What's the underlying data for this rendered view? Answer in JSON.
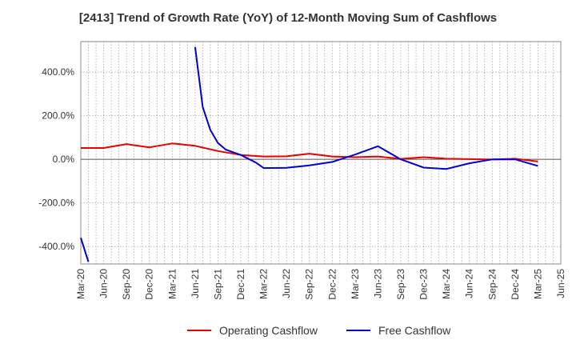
{
  "chart_data": {
    "type": "line",
    "title": "[2413]  Trend of Growth Rate (YoY) of 12-Month Moving Sum of Cashflows",
    "xlabel": "",
    "ylabel": "",
    "x_ticks": [
      "Mar-20",
      "Jun-20",
      "Sep-20",
      "Dec-20",
      "Mar-21",
      "Jun-21",
      "Sep-21",
      "Dec-21",
      "Mar-22",
      "Jun-22",
      "Sep-22",
      "Dec-22",
      "Mar-23",
      "Jun-23",
      "Sep-23",
      "Dec-23",
      "Mar-24",
      "Jun-24",
      "Sep-24",
      "Dec-24",
      "Mar-25",
      "Jun-25"
    ],
    "y_ticks": [
      "400.0%",
      "200.0%",
      "0.0%",
      "-200.0%",
      "-400.0%"
    ],
    "y_tick_values": [
      400,
      200,
      0,
      -200,
      -400
    ],
    "ylim": [
      -480,
      540
    ],
    "grid": true,
    "legend_position": "bottom",
    "series": [
      {
        "name": "Operating Cashflow",
        "color": "#e60000",
        "points": [
          [
            "Mar-20",
            52
          ],
          [
            "Jun-20",
            52
          ],
          [
            "Sep-20",
            70
          ],
          [
            "Dec-20",
            55
          ],
          [
            "Mar-21",
            73
          ],
          [
            "Jun-21",
            62
          ],
          [
            "Sep-21",
            38
          ],
          [
            "Dec-21",
            20
          ],
          [
            "Mar-22",
            13
          ],
          [
            "Jun-22",
            14
          ],
          [
            "Sep-22",
            26
          ],
          [
            "Dec-22",
            13
          ],
          [
            "Mar-23",
            10
          ],
          [
            "Jun-23",
            13
          ],
          [
            "Sep-23",
            2
          ],
          [
            "Dec-23",
            10
          ],
          [
            "Mar-24",
            3
          ],
          [
            "Jun-24",
            1
          ],
          [
            "Sep-24",
            -1
          ],
          [
            "Dec-24",
            3
          ],
          [
            "Mar-25",
            -10
          ]
        ]
      },
      {
        "name": "Free Cashflow",
        "color": "#0000cc",
        "segments": [
          [
            [
              "Mar-20",
              -360
            ],
            [
              "Apr-20",
              -470
            ]
          ],
          [
            [
              "Jun-21",
              515
            ],
            [
              "Jul-21",
              240
            ],
            [
              "Aug-21",
              135
            ],
            [
              "Sep-21",
              75
            ],
            [
              "Oct-21",
              45
            ],
            [
              "Dec-21",
              20
            ],
            [
              "Feb-22",
              -15
            ],
            [
              "Mar-22",
              -40
            ],
            [
              "Jun-22",
              -39
            ],
            [
              "Sep-22",
              -28
            ],
            [
              "Dec-22",
              -12
            ],
            [
              "Mar-23",
              22
            ],
            [
              "Jun-23",
              60
            ],
            [
              "Aug-23",
              20
            ],
            [
              "Sep-23",
              0
            ],
            [
              "Dec-23",
              -38
            ],
            [
              "Mar-24",
              -44
            ],
            [
              "Jun-24",
              -18
            ],
            [
              "Sep-24",
              0
            ],
            [
              "Dec-24",
              0
            ],
            [
              "Mar-25",
              -30
            ]
          ]
        ]
      }
    ]
  }
}
